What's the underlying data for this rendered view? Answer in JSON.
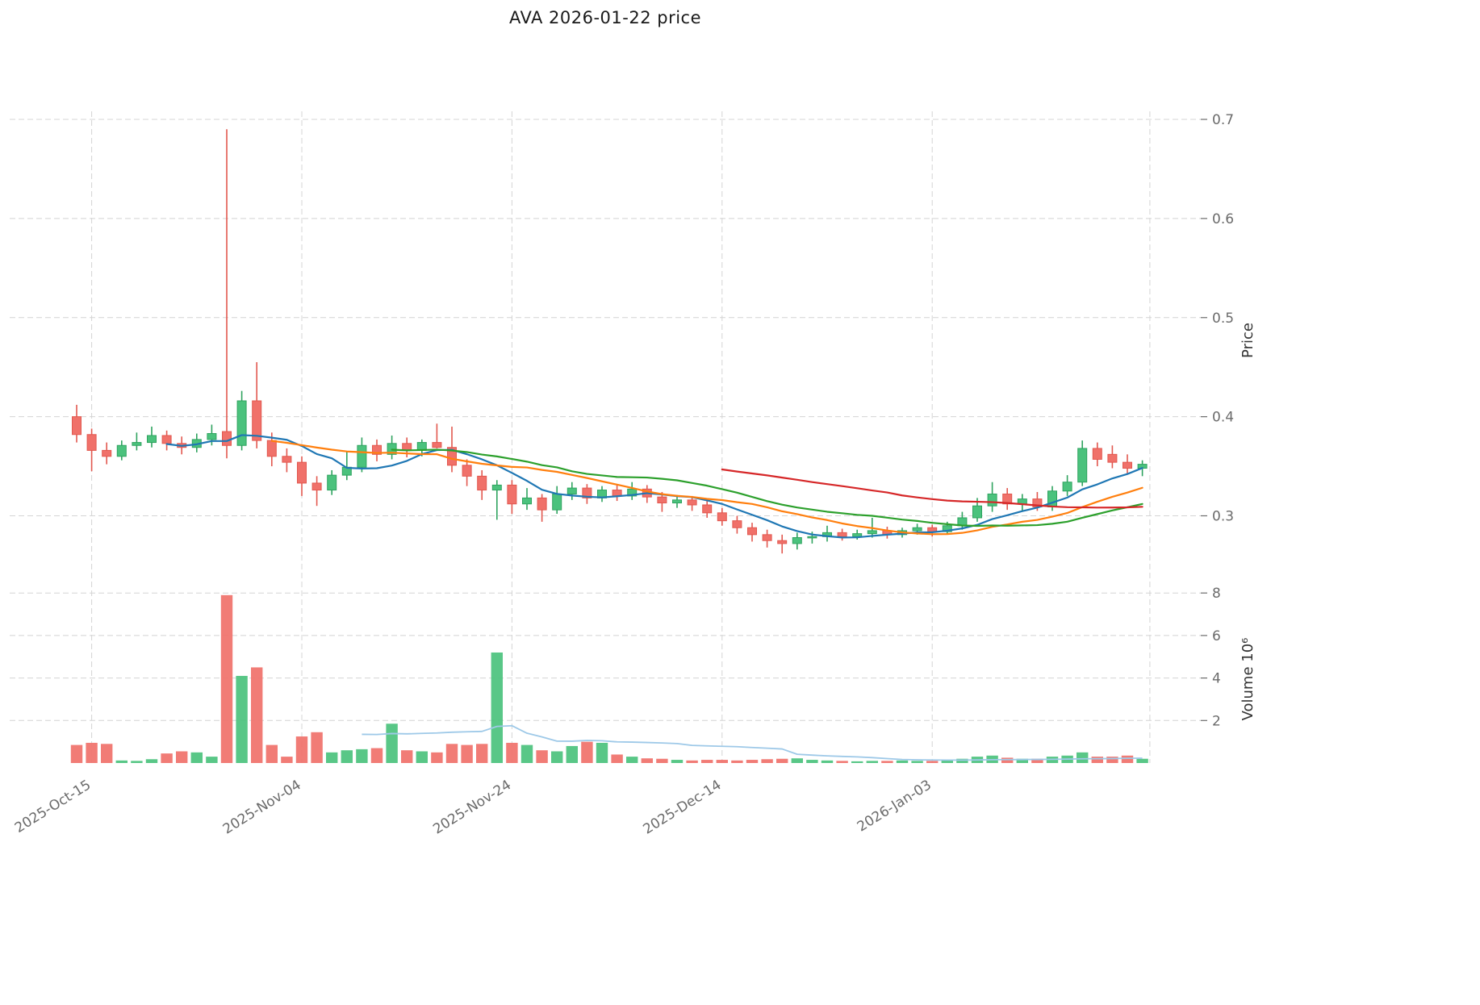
{
  "chart_data": {
    "type": "candlestick",
    "title": "AVA  2026-01-22  price",
    "symbol": "AVA",
    "as_of_label": "2026-01-22",
    "ylabel": "Price",
    "y2label": "Volume  10⁶",
    "price_axis": {
      "ticks": [
        0.3,
        0.4,
        0.5,
        0.6,
        0.7
      ],
      "range": [
        0.255,
        0.705
      ]
    },
    "volume_axis": {
      "ticks": [
        2,
        4,
        6,
        8
      ],
      "range": [
        0,
        8.4
      ]
    },
    "x_ticks": [
      {
        "index": 1,
        "label": "2025-Oct-15"
      },
      {
        "index": 15,
        "label": "2025-Nov-04"
      },
      {
        "index": 29,
        "label": "2025-Nov-24"
      },
      {
        "index": 43,
        "label": "2025-Dec-14"
      },
      {
        "index": 57,
        "label": "2026-Jan-03"
      },
      {
        "index": 71.5,
        "label": ""
      }
    ],
    "moving_averages": [
      {
        "window": 7,
        "color": "#1f77b4"
      },
      {
        "window": 14,
        "color": "#ff7f0e"
      },
      {
        "window": 22,
        "color": "#2ca02c"
      },
      {
        "window": 44,
        "color": "#d62728"
      }
    ],
    "volume_ma": {
      "window": 20,
      "color": "#9ec9e8"
    },
    "columns": [
      "date",
      "open",
      "high",
      "low",
      "close",
      "volume_millions"
    ],
    "candles": [
      [
        "2025-10-13",
        0.4,
        0.412,
        0.374,
        0.382,
        0.85
      ],
      [
        "2025-10-14",
        0.382,
        0.388,
        0.345,
        0.366,
        0.95
      ],
      [
        "2025-10-15",
        0.366,
        0.374,
        0.352,
        0.36,
        0.9
      ],
      [
        "2025-10-16",
        0.36,
        0.376,
        0.356,
        0.371,
        0.12
      ],
      [
        "2025-10-17",
        0.371,
        0.384,
        0.366,
        0.374,
        0.1
      ],
      [
        "2025-10-20",
        0.374,
        0.39,
        0.369,
        0.381,
        0.18
      ],
      [
        "2025-10-21",
        0.381,
        0.386,
        0.366,
        0.373,
        0.45
      ],
      [
        "2025-10-22",
        0.373,
        0.38,
        0.362,
        0.369,
        0.55
      ],
      [
        "2025-10-23",
        0.369,
        0.383,
        0.364,
        0.377,
        0.5
      ],
      [
        "2025-10-24",
        0.377,
        0.392,
        0.371,
        0.383,
        0.3
      ],
      [
        "2025-10-27",
        0.385,
        0.69,
        0.358,
        0.371,
        7.9
      ],
      [
        "2025-10-28",
        0.371,
        0.426,
        0.366,
        0.416,
        4.1
      ],
      [
        "2025-10-29",
        0.416,
        0.455,
        0.368,
        0.376,
        4.5
      ],
      [
        "2025-10-30",
        0.376,
        0.384,
        0.35,
        0.36,
        0.85
      ],
      [
        "2025-10-31",
        0.36,
        0.368,
        0.344,
        0.354,
        0.3
      ],
      [
        "2025-11-03",
        0.354,
        0.36,
        0.32,
        0.333,
        1.25
      ],
      [
        "2025-11-04",
        0.333,
        0.34,
        0.31,
        0.326,
        1.45
      ],
      [
        "2025-11-05",
        0.326,
        0.346,
        0.321,
        0.341,
        0.5
      ],
      [
        "2025-11-06",
        0.341,
        0.365,
        0.336,
        0.349,
        0.6
      ],
      [
        "2025-11-07",
        0.349,
        0.379,
        0.344,
        0.371,
        0.65
      ],
      [
        "2025-11-10",
        0.371,
        0.377,
        0.355,
        0.362,
        0.7
      ],
      [
        "2025-11-11",
        0.362,
        0.381,
        0.357,
        0.373,
        1.85
      ],
      [
        "2025-11-12",
        0.373,
        0.379,
        0.359,
        0.366,
        0.6
      ],
      [
        "2025-11-13",
        0.366,
        0.377,
        0.36,
        0.374,
        0.55
      ],
      [
        "2025-11-14",
        0.374,
        0.393,
        0.368,
        0.369,
        0.5
      ],
      [
        "2025-11-17",
        0.369,
        0.39,
        0.344,
        0.351,
        0.9
      ],
      [
        "2025-11-18",
        0.351,
        0.357,
        0.33,
        0.34,
        0.85
      ],
      [
        "2025-11-19",
        0.34,
        0.346,
        0.316,
        0.326,
        0.9
      ],
      [
        "2025-11-20",
        0.326,
        0.336,
        0.296,
        0.331,
        5.2
      ],
      [
        "2025-11-21",
        0.331,
        0.336,
        0.302,
        0.312,
        0.95
      ],
      [
        "2025-11-24",
        0.312,
        0.328,
        0.306,
        0.318,
        0.85
      ],
      [
        "2025-11-25",
        0.318,
        0.322,
        0.294,
        0.306,
        0.6
      ],
      [
        "2025-11-26",
        0.306,
        0.33,
        0.302,
        0.322,
        0.55
      ],
      [
        "2025-11-27",
        0.322,
        0.334,
        0.316,
        0.328,
        0.8
      ],
      [
        "2025-11-28",
        0.328,
        0.332,
        0.312,
        0.318,
        1.0
      ],
      [
        "2025-12-01",
        0.318,
        0.33,
        0.314,
        0.326,
        0.95
      ],
      [
        "2025-12-02",
        0.326,
        0.331,
        0.315,
        0.32,
        0.4
      ],
      [
        "2025-12-03",
        0.32,
        0.334,
        0.316,
        0.327,
        0.3
      ],
      [
        "2025-12-04",
        0.327,
        0.331,
        0.313,
        0.319,
        0.22
      ],
      [
        "2025-12-05",
        0.319,
        0.324,
        0.304,
        0.313,
        0.2
      ],
      [
        "2025-12-08",
        0.313,
        0.321,
        0.308,
        0.316,
        0.15
      ],
      [
        "2025-12-09",
        0.316,
        0.32,
        0.305,
        0.311,
        0.12
      ],
      [
        "2025-12-10",
        0.311,
        0.315,
        0.298,
        0.303,
        0.15
      ],
      [
        "2025-12-11",
        0.303,
        0.308,
        0.29,
        0.295,
        0.15
      ],
      [
        "2025-12-12",
        0.295,
        0.3,
        0.282,
        0.288,
        0.12
      ],
      [
        "2025-12-15",
        0.288,
        0.293,
        0.274,
        0.281,
        0.15
      ],
      [
        "2025-12-16",
        0.281,
        0.286,
        0.268,
        0.275,
        0.18
      ],
      [
        "2025-12-17",
        0.275,
        0.281,
        0.262,
        0.272,
        0.2
      ],
      [
        "2025-12-18",
        0.272,
        0.283,
        0.266,
        0.278,
        0.22
      ],
      [
        "2025-12-19",
        0.278,
        0.284,
        0.272,
        0.279,
        0.15
      ],
      [
        "2025-12-22",
        0.279,
        0.29,
        0.274,
        0.283,
        0.12
      ],
      [
        "2025-12-23",
        0.283,
        0.287,
        0.275,
        0.279,
        0.1
      ],
      [
        "2025-12-24",
        0.279,
        0.286,
        0.276,
        0.282,
        0.08
      ],
      [
        "2025-12-26",
        0.282,
        0.298,
        0.278,
        0.285,
        0.1
      ],
      [
        "2025-12-29",
        0.285,
        0.289,
        0.277,
        0.281,
        0.1
      ],
      [
        "2025-12-30",
        0.281,
        0.288,
        0.278,
        0.285,
        0.12
      ],
      [
        "2025-12-31",
        0.285,
        0.292,
        0.281,
        0.288,
        0.1
      ],
      [
        "2026-01-02",
        0.288,
        0.291,
        0.279,
        0.284,
        0.1
      ],
      [
        "2026-01-05",
        0.284,
        0.294,
        0.281,
        0.29,
        0.15
      ],
      [
        "2026-01-06",
        0.29,
        0.304,
        0.286,
        0.298,
        0.2
      ],
      [
        "2026-01-07",
        0.298,
        0.318,
        0.294,
        0.31,
        0.3
      ],
      [
        "2026-01-08",
        0.31,
        0.334,
        0.304,
        0.322,
        0.35
      ],
      [
        "2026-01-09",
        0.322,
        0.328,
        0.306,
        0.312,
        0.25
      ],
      [
        "2026-01-12",
        0.312,
        0.322,
        0.304,
        0.317,
        0.2
      ],
      [
        "2026-01-13",
        0.317,
        0.324,
        0.305,
        0.309,
        0.2
      ],
      [
        "2026-01-14",
        0.309,
        0.33,
        0.305,
        0.325,
        0.3
      ],
      [
        "2026-01-15",
        0.325,
        0.341,
        0.32,
        0.334,
        0.35
      ],
      [
        "2026-01-16",
        0.334,
        0.376,
        0.33,
        0.368,
        0.5
      ],
      [
        "2026-01-19",
        0.368,
        0.374,
        0.35,
        0.357,
        0.3
      ],
      [
        "2026-01-20",
        0.362,
        0.371,
        0.348,
        0.354,
        0.3
      ],
      [
        "2026-01-21",
        0.354,
        0.362,
        0.342,
        0.348,
        0.35
      ],
      [
        "2026-01-22",
        0.348,
        0.356,
        0.34,
        0.352,
        0.2
      ]
    ]
  },
  "colors": {
    "up": "#4bc27d",
    "up_edge": "#2fa35f",
    "down": "#f0716a",
    "down_edge": "#e2584f",
    "grid": "#d4d4d4",
    "tick_text": "#6b6b6b",
    "axis_label_text": "#333333",
    "title_text": "#1a1a1a"
  }
}
